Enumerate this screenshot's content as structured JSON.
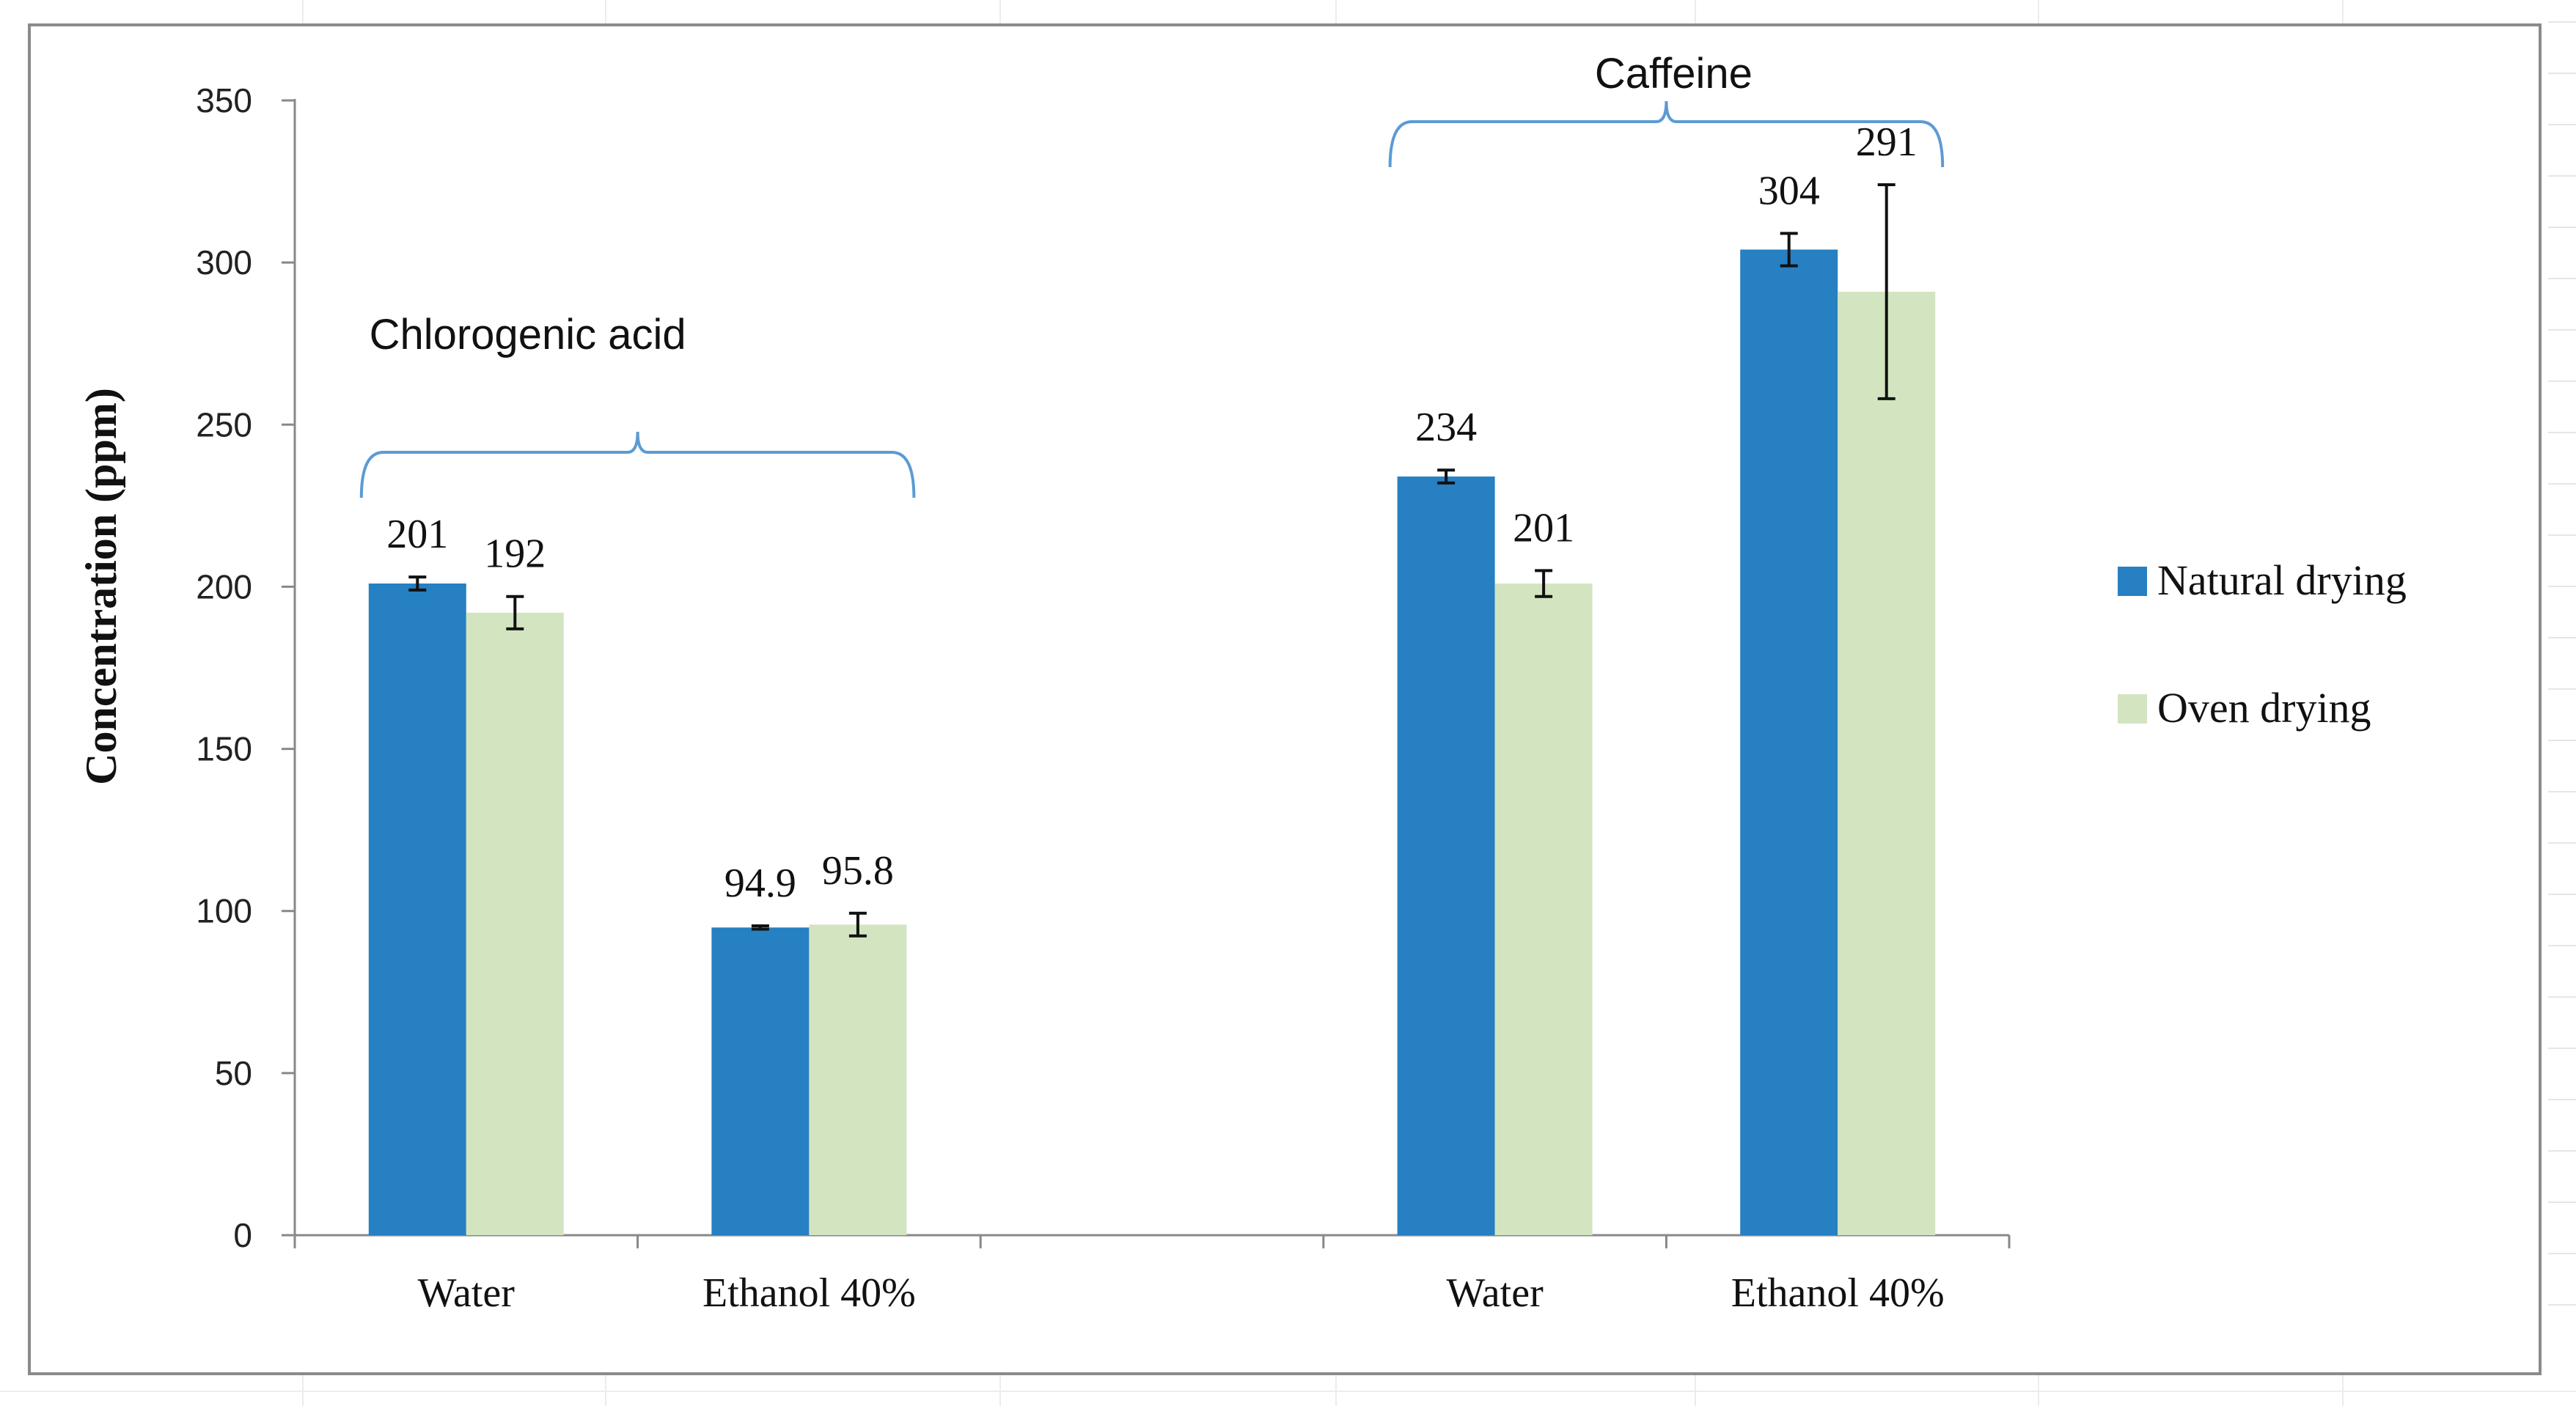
{
  "chart_data": {
    "type": "bar",
    "title": "",
    "xlabel": "",
    "ylabel": "Concentration (ppm)",
    "ylim": [
      0,
      350
    ],
    "yticks": [
      0,
      50,
      100,
      150,
      200,
      250,
      300,
      350
    ],
    "grid": false,
    "legend_position": "right",
    "groups": [
      {
        "label": "Chlorogenic acid",
        "categories": [
          "Water",
          "Ethanol 40%"
        ]
      },
      {
        "label": "Caffeine",
        "categories": [
          "Water",
          "Ethanol 40%"
        ]
      }
    ],
    "categories": [
      "Water",
      "Ethanol 40%",
      "",
      "Water",
      "Ethanol 40%"
    ],
    "series": [
      {
        "name": "Natural drying",
        "color": "#2680c2",
        "values": [
          201,
          94.9,
          null,
          234,
          304
        ],
        "labels": [
          "201",
          "94.9",
          "",
          "234",
          "304"
        ],
        "errors": [
          2,
          0.5,
          null,
          2,
          5
        ]
      },
      {
        "name": "Oven drying",
        "color": "#d3e5c0",
        "values": [
          192,
          95.8,
          null,
          201,
          291
        ],
        "labels": [
          "192",
          "95.8",
          "",
          "201",
          "291"
        ],
        "errors": [
          5,
          3.5,
          null,
          4,
          33
        ]
      }
    ]
  }
}
